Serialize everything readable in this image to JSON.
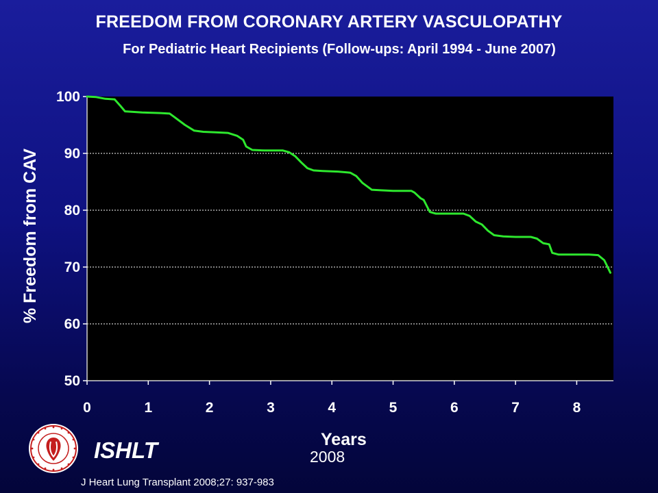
{
  "header": {
    "title": "FREEDOM FROM CORONARY ARTERY VASCULOPATHY",
    "subtitle": "For Pediatric Heart Recipients (Follow-ups: April 1994 - June 2007)"
  },
  "footer": {
    "org": "ISHLT",
    "year": "2008",
    "citation": "J Heart Lung Transplant 2008;27: 937-983"
  },
  "colors": {
    "curve": "#2ee82e",
    "plot_background": "#000000",
    "gridline": "#ffffff"
  },
  "seal_icon": "ishlt-seal-icon",
  "chart_data": {
    "type": "line",
    "title": "FREEDOM FROM CORONARY ARTERY VASCULOPATHY",
    "subtitle": "For Pediatric Heart Recipients (Follow-ups: April 1994 - June 2007)",
    "xlabel": "Years",
    "ylabel": "% Freedom from CAV",
    "xlim": [
      0,
      8.6
    ],
    "ylim": [
      50,
      100
    ],
    "xticks": [
      0,
      1,
      2,
      3,
      4,
      5,
      6,
      7,
      8
    ],
    "yticks": [
      50,
      60,
      70,
      80,
      90,
      100
    ],
    "grid": "horizontal dashed",
    "series": [
      {
        "x": [
          0,
          0.15,
          0.3,
          0.45,
          0.55,
          0.62,
          0.75,
          0.9,
          1.2,
          1.35,
          1.45,
          1.6,
          1.75,
          1.9,
          2.1,
          2.3,
          2.45,
          2.55,
          2.6,
          2.7,
          2.9,
          3.2,
          3.3,
          3.4,
          3.5,
          3.6,
          3.7,
          3.85,
          4.1,
          4.3,
          4.4,
          4.5,
          4.65,
          4.8,
          5.0,
          5.3,
          5.35,
          5.45,
          5.5,
          5.6,
          5.7,
          5.9,
          6.15,
          6.25,
          6.35,
          6.45,
          6.55,
          6.65,
          6.8,
          7.0,
          7.25,
          7.35,
          7.45,
          7.55,
          7.6,
          7.7,
          7.9,
          8.2,
          8.35,
          8.45,
          8.55
        ],
        "y": [
          100,
          99.9,
          99.6,
          99.5,
          98.3,
          97.4,
          97.3,
          97.2,
          97.1,
          97.0,
          96.2,
          95.0,
          94.0,
          93.8,
          93.7,
          93.6,
          93.1,
          92.4,
          91.2,
          90.6,
          90.5,
          90.5,
          90.2,
          89.5,
          88.4,
          87.4,
          87.0,
          86.9,
          86.8,
          86.6,
          86.0,
          84.8,
          83.6,
          83.5,
          83.4,
          83.4,
          83.1,
          82.1,
          81.8,
          79.7,
          79.4,
          79.4,
          79.4,
          79.0,
          78.0,
          77.5,
          76.4,
          75.6,
          75.4,
          75.3,
          75.3,
          75.0,
          74.2,
          74.0,
          72.5,
          72.2,
          72.2,
          72.2,
          72.1,
          71.2,
          69.0
        ]
      }
    ]
  }
}
